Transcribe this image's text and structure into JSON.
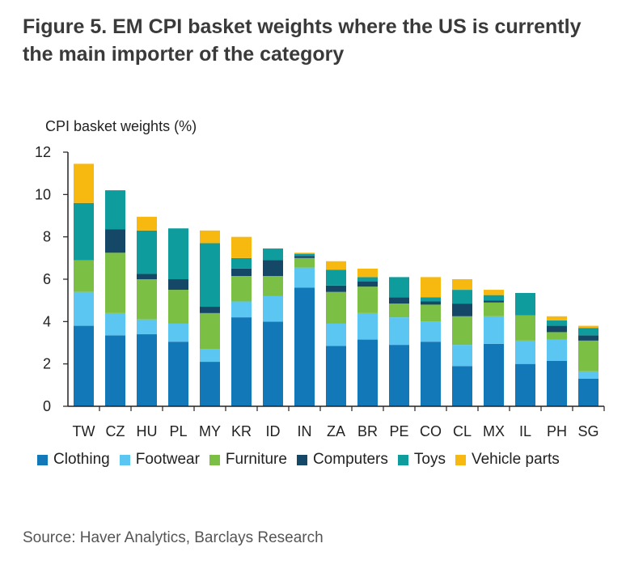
{
  "title": "Figure 5. EM CPI basket weights where the US is currently the main importer of the category",
  "source": "Source: Haver Analytics, Barclays Research",
  "colors": {
    "Clothing": "#1278b8",
    "Footwear": "#5cc6f2",
    "Furniture": "#7cbf45",
    "Computers": "#144866",
    "Toys": "#0f9c9c",
    "Vehicle parts": "#f7b90f",
    "axis": "#222222"
  },
  "chart_data": {
    "type": "bar",
    "stacked": true,
    "ylabel": "CPI basket weights (%)",
    "xlabel": "",
    "ylim": [
      0,
      12
    ],
    "yticks": [
      0,
      2,
      4,
      6,
      8,
      10,
      12
    ],
    "grid": false,
    "legend_position": "bottom",
    "categories": [
      "TW",
      "CZ",
      "HU",
      "PL",
      "MY",
      "KR",
      "ID",
      "IN",
      "ZA",
      "BR",
      "PE",
      "CO",
      "CL",
      "MX",
      "IL",
      "PH",
      "SG"
    ],
    "series": [
      {
        "name": "Clothing",
        "values": [
          3.8,
          3.35,
          3.4,
          3.05,
          2.1,
          4.2,
          4.0,
          5.6,
          2.85,
          3.15,
          2.9,
          3.05,
          1.9,
          2.95,
          2.0,
          2.15,
          1.3
        ]
      },
      {
        "name": "Footwear",
        "values": [
          1.6,
          1.05,
          0.7,
          0.85,
          0.6,
          0.75,
          1.2,
          0.95,
          1.05,
          1.25,
          1.3,
          0.95,
          1.0,
          1.3,
          1.1,
          1.0,
          0.35
        ]
      },
      {
        "name": "Furniture",
        "values": [
          1.5,
          2.85,
          1.9,
          1.6,
          1.7,
          1.2,
          0.95,
          0.45,
          1.5,
          1.25,
          0.65,
          0.8,
          1.35,
          0.65,
          1.2,
          0.35,
          1.45
        ]
      },
      {
        "name": "Computers",
        "values": [
          0.0,
          1.1,
          0.25,
          0.5,
          0.3,
          0.35,
          0.75,
          0.1,
          0.3,
          0.25,
          0.3,
          0.15,
          0.6,
          0.1,
          0.0,
          0.3,
          0.25
        ]
      },
      {
        "name": "Toys",
        "values": [
          2.7,
          1.85,
          2.05,
          2.4,
          3.0,
          0.5,
          0.55,
          0.1,
          0.75,
          0.2,
          0.95,
          0.2,
          0.65,
          0.25,
          1.05,
          0.25,
          0.35
        ]
      },
      {
        "name": "Vehicle parts",
        "values": [
          1.85,
          0.0,
          0.65,
          0.0,
          0.6,
          1.0,
          0.0,
          0.05,
          0.4,
          0.4,
          0.0,
          0.95,
          0.5,
          0.25,
          0.0,
          0.2,
          0.1
        ]
      }
    ]
  }
}
